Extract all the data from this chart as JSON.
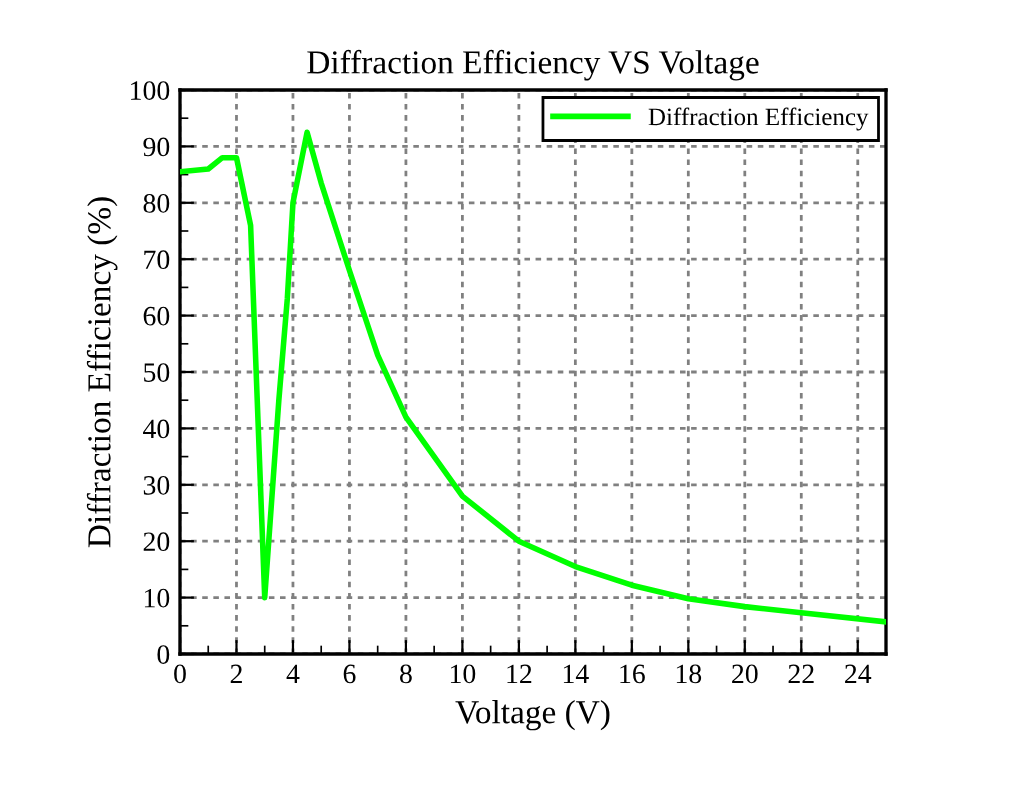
{
  "chart_data": {
    "type": "line",
    "title": "Diffraction Efficiency VS Voltage",
    "xlabel": "Voltage (V)",
    "ylabel": "Diffraction Efficiency (%)",
    "series": [
      {
        "name": "Diffraction Efficiency",
        "color": "#00ff00",
        "x": [
          0,
          1,
          1.5,
          2,
          2.5,
          3,
          3.5,
          3.8,
          4,
          4.5,
          5,
          6,
          7,
          8,
          9,
          10,
          12,
          14,
          16,
          18,
          20,
          22,
          25
        ],
        "values": [
          85.5,
          86,
          88,
          88,
          76,
          10,
          45,
          63,
          80,
          92.5,
          83.5,
          68,
          53,
          42,
          35,
          28,
          20,
          15.5,
          12.2,
          9.8,
          8.4,
          7.3,
          5.7
        ]
      }
    ],
    "xlim": [
      0,
      25
    ],
    "xticks": [
      0,
      2,
      4,
      6,
      8,
      10,
      12,
      14,
      16,
      18,
      20,
      22,
      24
    ],
    "ylim": [
      0,
      100
    ],
    "yticks": [
      0,
      10,
      20,
      30,
      40,
      50,
      60,
      70,
      80,
      90,
      100
    ],
    "grid": true,
    "legend": "top right",
    "line_style": "solid",
    "marker": "none"
  }
}
